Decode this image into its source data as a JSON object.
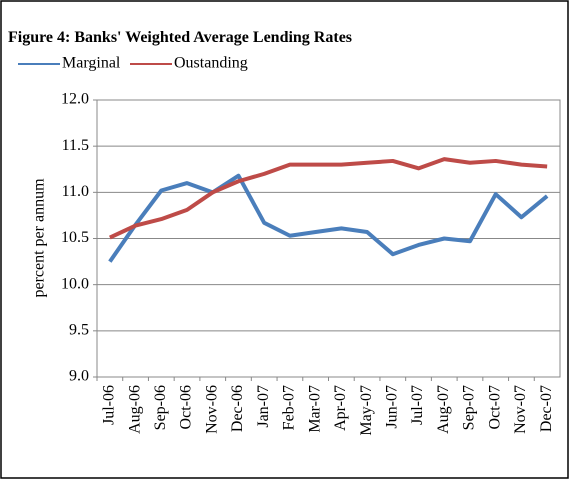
{
  "chart_data": {
    "type": "line",
    "title": "Figure 4: Banks' Weighted Average Lending Rates",
    "y_label": "percent per annum",
    "categories": [
      "Jul-06",
      "Aug-06",
      "Sep-06",
      "Oct-06",
      "Nov-06",
      "Dec-06",
      "Jan-07",
      "Feb-07",
      "Mar-07",
      "Apr-07",
      "May-07",
      "Jun-07",
      "Jul-07",
      "Aug-07",
      "Sep-07",
      "Oct-07",
      "Nov-07",
      "Dec-07"
    ],
    "series": [
      {
        "name": "Marginal",
        "color": "#4a7ebb",
        "values": [
          10.25,
          10.65,
          11.02,
          11.1,
          11.0,
          11.18,
          10.67,
          10.53,
          10.57,
          10.61,
          10.57,
          10.33,
          10.43,
          10.5,
          10.47,
          10.98,
          10.73,
          10.96
        ]
      },
      {
        "name": "Oustanding",
        "color": "#be4b48",
        "values": [
          10.51,
          10.64,
          10.71,
          10.81,
          11.0,
          11.12,
          11.2,
          11.3,
          11.3,
          11.3,
          11.32,
          11.34,
          11.26,
          11.36,
          11.32,
          11.34,
          11.3,
          11.28
        ]
      }
    ],
    "ylim": [
      9,
      12
    ],
    "yticks": [
      {
        "value": 9,
        "label": "9.0"
      },
      9.5,
      {
        "value": 10,
        "label": "10.0"
      },
      10.5,
      {
        "value": 11,
        "label": "11.0"
      },
      11.5,
      {
        "value": 12,
        "label": "12.0"
      }
    ],
    "grid": true
  }
}
